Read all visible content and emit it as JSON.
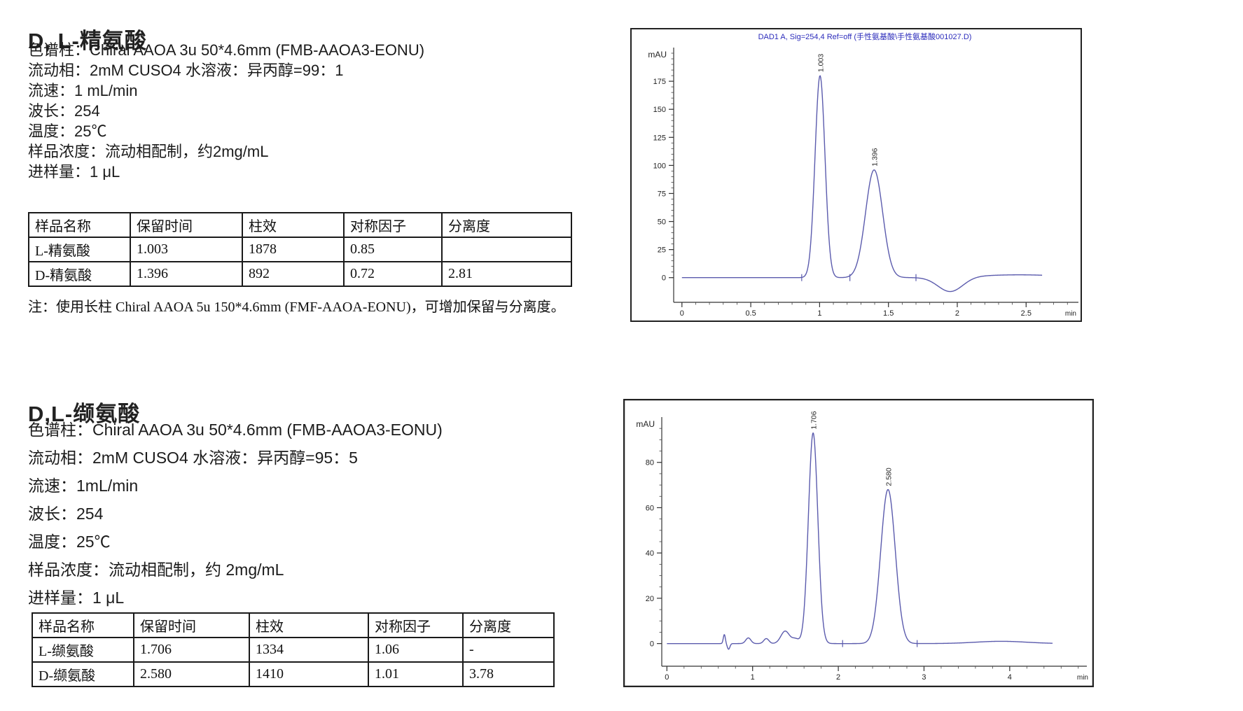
{
  "sections": [
    {
      "title": "D, L-精氨酸",
      "conditions": [
        "色谱柱：Chiral AAOA 3u 50*4.6mm (FMB-AAOA3-EONU)",
        "流动相：2mM CUSO4 水溶液：异丙醇=99：1",
        "流速：1 mL/min",
        "波长：254",
        "温度：25℃",
        "样品浓度：流动相配制，约2mg/mL",
        "进样量：1 μL"
      ],
      "table": {
        "headers": [
          "样品名称",
          "保留时间",
          "柱效",
          "对称因子",
          "分离度"
        ],
        "rows": [
          [
            "L-精氨酸",
            "1.003",
            "1878",
            "0.85",
            ""
          ],
          [
            "D-精氨酸",
            "1.396",
            "892",
            "0.72",
            "2.81"
          ]
        ]
      },
      "note": "注：使用长柱 Chiral AAOA 5u 150*4.6mm (FMF-AAOA-EONU)，可增加保留与分离度。"
    },
    {
      "title": "D,L-缬氨酸",
      "conditions": [
        "色谱柱：Chiral AAOA 3u 50*4.6mm (FMB-AAOA3-EONU)",
        "流动相：2mM CUSO4 水溶液：异丙醇=95：5",
        "流速：1mL/min",
        "波长：254",
        "温度：25℃",
        "样品浓度：流动相配制，约 2mg/mL",
        "进样量：1 μL"
      ],
      "table": {
        "headers": [
          "样品名称",
          "保留时间",
          "柱效",
          "对称因子",
          "分离度"
        ],
        "rows": [
          [
            "L-缬氨酸",
            "1.706",
            "1334",
            "1.06",
            "-"
          ],
          [
            "D-缬氨酸",
            "2.580",
            "1410",
            "1.01",
            "3.78"
          ]
        ]
      }
    }
  ],
  "chart_data": [
    {
      "type": "line",
      "title": "DAD1 A, Sig=254,4 Ref=off (手性氨基酸\\手性氨基酸001027.D)",
      "ylabel": "mAU",
      "xlabel": "min",
      "yticks": [
        0,
        25,
        50,
        75,
        100,
        125,
        150,
        175
      ],
      "xticks": [
        0,
        0.5,
        1,
        1.5,
        2,
        2.5
      ],
      "ylim": [
        -22,
        205
      ],
      "xlim": [
        -0.06,
        2.88
      ],
      "y_minor": 5,
      "x_minor": 0.1,
      "grid": false,
      "legend": false,
      "trace_color": "#5b5bad",
      "title_color": "#2b2bbb",
      "peaks": [
        {
          "rt": 1.003,
          "height": 180,
          "sigma": 0.036,
          "label": "1.003"
        },
        {
          "rt": 1.396,
          "height": 96,
          "sigma": 0.062,
          "label": "1.396"
        }
      ],
      "extras": [
        {
          "t": 1.95,
          "h": -13,
          "w": 0.09
        },
        {
          "t": 2.45,
          "h": 2.5,
          "w": 0.3
        }
      ],
      "markers": [
        0.87,
        1.22,
        1.7
      ],
      "t_end": 2.62
    },
    {
      "type": "line",
      "title": "",
      "ylabel": "mAU",
      "xlabel": "min",
      "yticks": [
        0,
        20,
        40,
        60,
        80
      ],
      "xticks": [
        0,
        1,
        2,
        3,
        4
      ],
      "ylim": [
        -10,
        100
      ],
      "xlim": [
        -0.06,
        4.9
      ],
      "y_minor": 5,
      "x_minor": 0.2,
      "grid": false,
      "legend": false,
      "trace_color": "#5b5bad",
      "title_color": "#2b2bbb",
      "peaks": [
        {
          "rt": 1.706,
          "height": 93,
          "sigma": 0.055,
          "label": "1.706"
        },
        {
          "rt": 2.58,
          "height": 68,
          "sigma": 0.085,
          "label": "2.580"
        }
      ],
      "extras": [
        {
          "t": 0.67,
          "h": 4,
          "w": 0.012
        },
        {
          "t": 0.72,
          "h": -2.5,
          "w": 0.015
        },
        {
          "t": 0.95,
          "h": 2.5,
          "w": 0.03
        },
        {
          "t": 1.16,
          "h": 2.2,
          "w": 0.03
        },
        {
          "t": 1.38,
          "h": 5.5,
          "w": 0.05
        },
        {
          "t": 1.5,
          "h": 2.0,
          "w": 0.04
        },
        {
          "t": 3.9,
          "h": 1.0,
          "w": 0.3
        }
      ],
      "markers": [
        2.05,
        2.92
      ],
      "t_end": 4.5
    }
  ]
}
